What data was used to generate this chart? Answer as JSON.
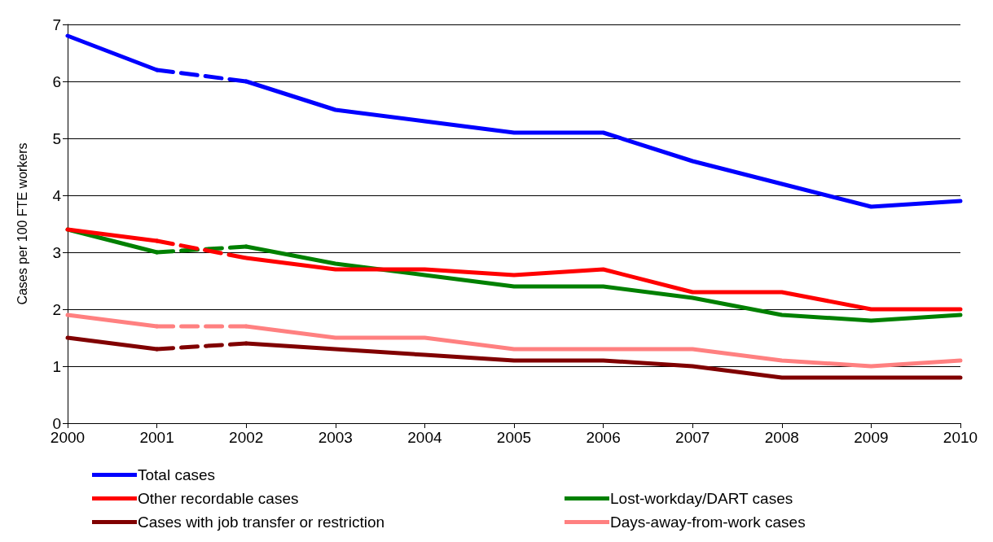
{
  "chart_data": {
    "type": "line",
    "ylabel": "Cases per 100 FTE workers",
    "x": [
      2000,
      2001,
      2002,
      2003,
      2004,
      2005,
      2006,
      2007,
      2008,
      2009,
      2010
    ],
    "xlim": [
      2000,
      2010
    ],
    "xticks": [
      2000,
      2001,
      2002,
      2003,
      2004,
      2005,
      2006,
      2007,
      2008,
      2009,
      2010
    ],
    "ylim": [
      0,
      7
    ],
    "yticks": [
      0,
      1,
      2,
      3,
      4,
      5,
      6,
      7
    ],
    "grid": "y",
    "legend": "bottom",
    "marker": "none",
    "line_style": "solid",
    "series": [
      {
        "name": "Total cases",
        "color": "#0000ff",
        "values": [
          null,
          null,
          6.0,
          5.5,
          5.3,
          5.1,
          5.1,
          4.6,
          4.2,
          3.8,
          3.9
        ]
      },
      {
        "name": "Lost-workday/DART cases",
        "color": "#008000",
        "values": [
          null,
          null,
          3.1,
          2.8,
          2.6,
          2.4,
          2.4,
          2.2,
          1.9,
          1.8,
          1.9
        ]
      },
      {
        "name": "Other recordable cases",
        "color": "#ff0000",
        "values": [
          null,
          null,
          2.9,
          2.7,
          2.7,
          2.6,
          2.7,
          2.3,
          2.3,
          2.0,
          2.0
        ]
      },
      {
        "name": "Days-away-from-work cases",
        "color": "#ff8080",
        "values": [
          null,
          null,
          1.7,
          1.5,
          1.5,
          1.3,
          1.3,
          1.3,
          1.1,
          1.0,
          1.1
        ]
      },
      {
        "name": "Cases with job transfer or restriction",
        "color": "#800000",
        "values": [
          null,
          null,
          1.4,
          1.3,
          1.2,
          1.1,
          1.1,
          1.0,
          0.8,
          0.8,
          0.8
        ]
      },
      {
        "color": "#0000ff",
        "values": [
          6.8,
          6.2,
          null,
          null,
          null,
          null,
          null,
          null,
          null,
          null,
          null
        ]
      },
      {
        "color": "#008000",
        "values": [
          3.4,
          3.0,
          null,
          null,
          null,
          null,
          null,
          null,
          null,
          null,
          null
        ]
      },
      {
        "color": "#ff0000",
        "values": [
          3.4,
          3.2,
          null,
          null,
          null,
          null,
          null,
          null,
          null,
          null,
          null
        ]
      },
      {
        "color": "#ff8080",
        "values": [
          1.9,
          1.7,
          null,
          null,
          null,
          null,
          null,
          null,
          null,
          null,
          null
        ]
      },
      {
        "color": "#800000",
        "values": [
          1.5,
          1.3,
          null,
          null,
          null,
          null,
          null,
          null,
          null,
          null,
          null
        ]
      },
      {
        "color": "#0000ff",
        "line_style": "dashed",
        "values": [
          null,
          6.2,
          6.0,
          null,
          null,
          null,
          null,
          null,
          null,
          null,
          null
        ]
      },
      {
        "color": "#008000",
        "line_style": "dashed",
        "values": [
          null,
          3.0,
          3.1,
          null,
          null,
          null,
          null,
          null,
          null,
          null,
          null
        ]
      },
      {
        "color": "#ff0000",
        "line_style": "dashed",
        "values": [
          null,
          3.2,
          2.9,
          null,
          null,
          null,
          null,
          null,
          null,
          null,
          null
        ]
      },
      {
        "color": "#ff8080",
        "line_style": "dashed",
        "values": [
          null,
          1.7,
          1.7,
          null,
          null,
          null,
          null,
          null,
          null,
          null,
          null
        ]
      },
      {
        "color": "#800000",
        "line_style": "dashed",
        "values": [
          null,
          1.3,
          1.4,
          null,
          null,
          null,
          null,
          null,
          null,
          null,
          null
        ]
      }
    ]
  }
}
